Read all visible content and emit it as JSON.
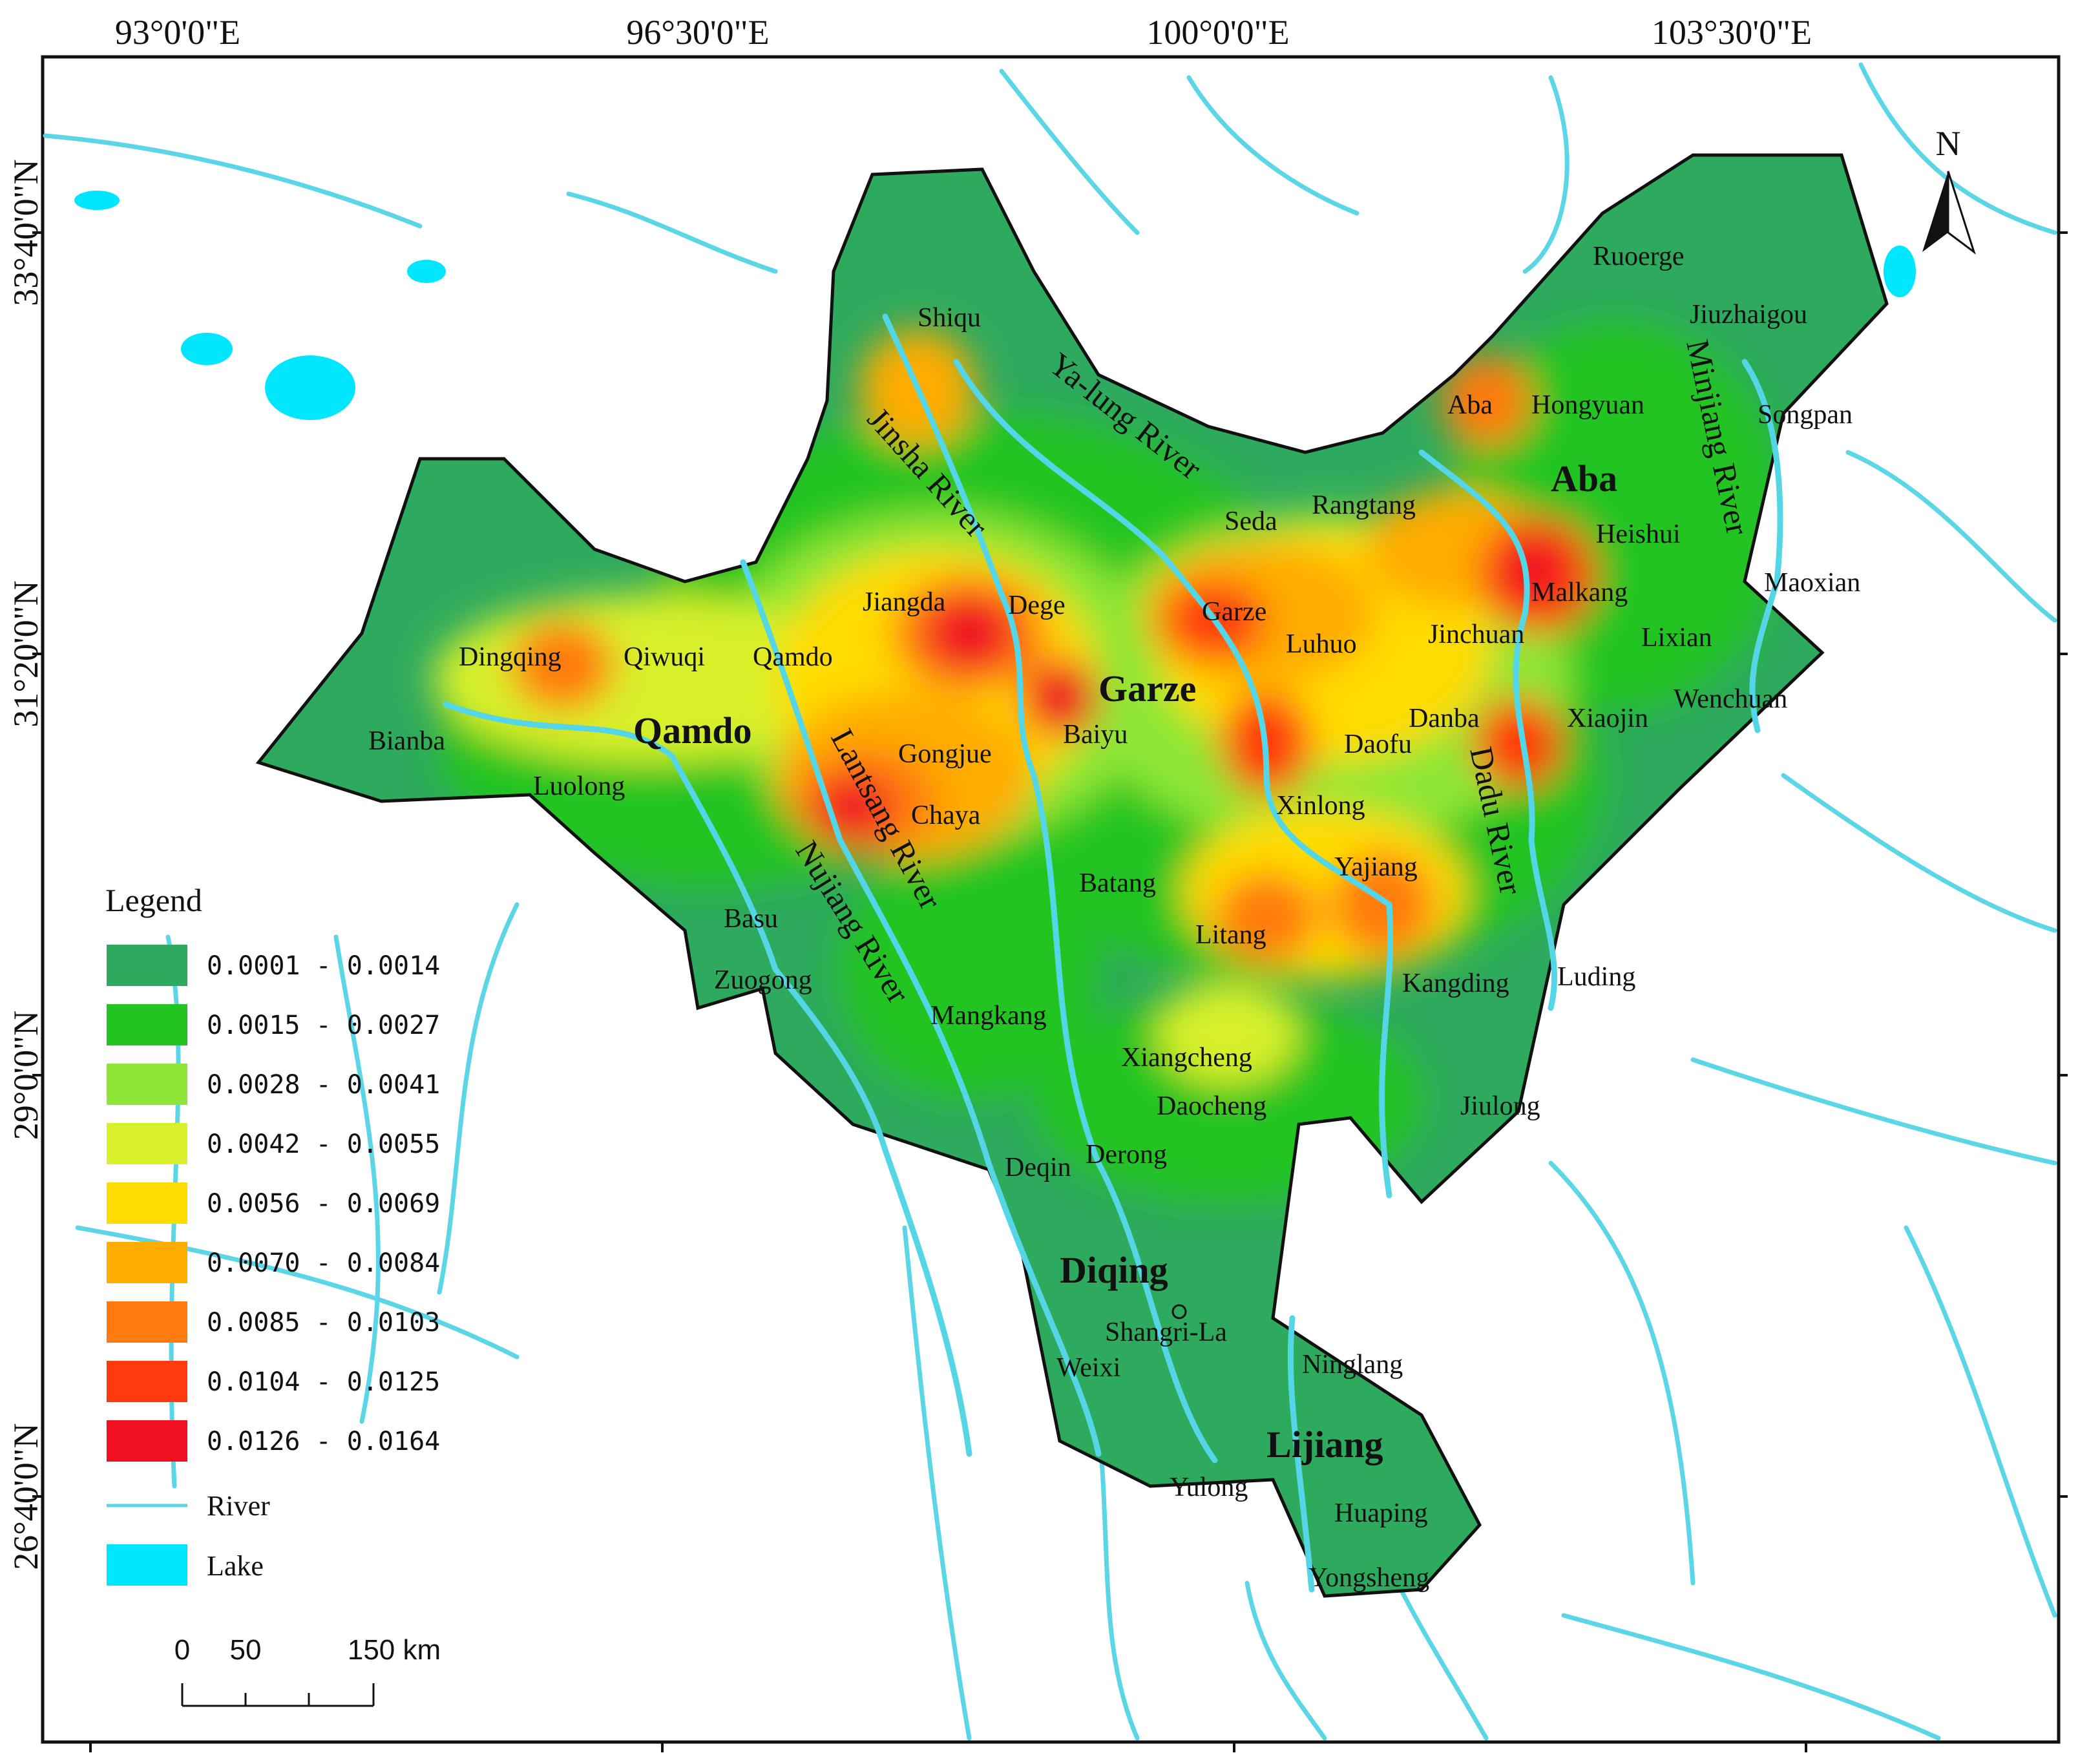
{
  "map": {
    "lon_labels": [
      "93°0'0\"E",
      "96°30'0\"E",
      "100°0'0\"E",
      "103°30'0\"E"
    ],
    "lat_labels": [
      "33°40'0\"N",
      "31°20'0\"N",
      "29°0'0\"N",
      "26°40'0\"N"
    ],
    "north_label": "N",
    "regions": [
      "Qamdo",
      "Garze",
      "Aba",
      "Diqing",
      "Lijiang"
    ],
    "places": [
      "Shiqu",
      "Ruoerge",
      "Jiuzhaigou",
      "Aba",
      "Hongyuan",
      "Songpan",
      "Seda",
      "Rangtang",
      "Heishui",
      "Maoxian",
      "Malkang",
      "Jiangda",
      "Dege",
      "Garze",
      "Luhuo",
      "Jinchuan",
      "Lixian",
      "Dingqing",
      "Qiwuqi",
      "Qamdo",
      "Danba",
      "Xiaojin",
      "Wenchuan",
      "Bianba",
      "Gongjue",
      "Baiyu",
      "Daofu",
      "Luolong",
      "Chaya",
      "Xinlong",
      "Yajiang",
      "Batang",
      "Basu",
      "Litang",
      "Luding",
      "Zuogong",
      "Kangding",
      "Mangkang",
      "Xiangcheng",
      "Jiulong",
      "Daocheng",
      "Derong",
      "Deqin",
      "Shangri-La",
      "Weixi",
      "Ninglang",
      "Yulong",
      "Huaping",
      "Yongsheng"
    ],
    "rivers": [
      "Jinsha River",
      "Ya-lung River",
      "Minjiang River",
      "Lantsang River",
      "Nujiang River",
      "Dadu River"
    ]
  },
  "legend": {
    "title": "Legend",
    "classes": [
      {
        "label": "0.0001 - 0.0014",
        "color": "#2eaa5e"
      },
      {
        "label": "0.0015 - 0.0027",
        "color": "#22c422"
      },
      {
        "label": "0.0028 - 0.0041",
        "color": "#8ee636"
      },
      {
        "label": "0.0042 - 0.0055",
        "color": "#d8f02a"
      },
      {
        "label": "0.0056 - 0.0069",
        "color": "#ffdc00"
      },
      {
        "label": "0.0070 - 0.0084",
        "color": "#ffac00"
      },
      {
        "label": "0.0085 - 0.0103",
        "color": "#ff7a10"
      },
      {
        "label": "0.0104 - 0.0125",
        "color": "#ff3a10"
      },
      {
        "label": "0.0126 - 0.0164",
        "color": "#f01020"
      }
    ],
    "river_label": "River",
    "lake_label": "Lake",
    "river_color": "#5ad6e6",
    "lake_color": "#00e6ff"
  },
  "scale_bar": {
    "labels": [
      "0",
      "50",
      "150 km"
    ]
  }
}
